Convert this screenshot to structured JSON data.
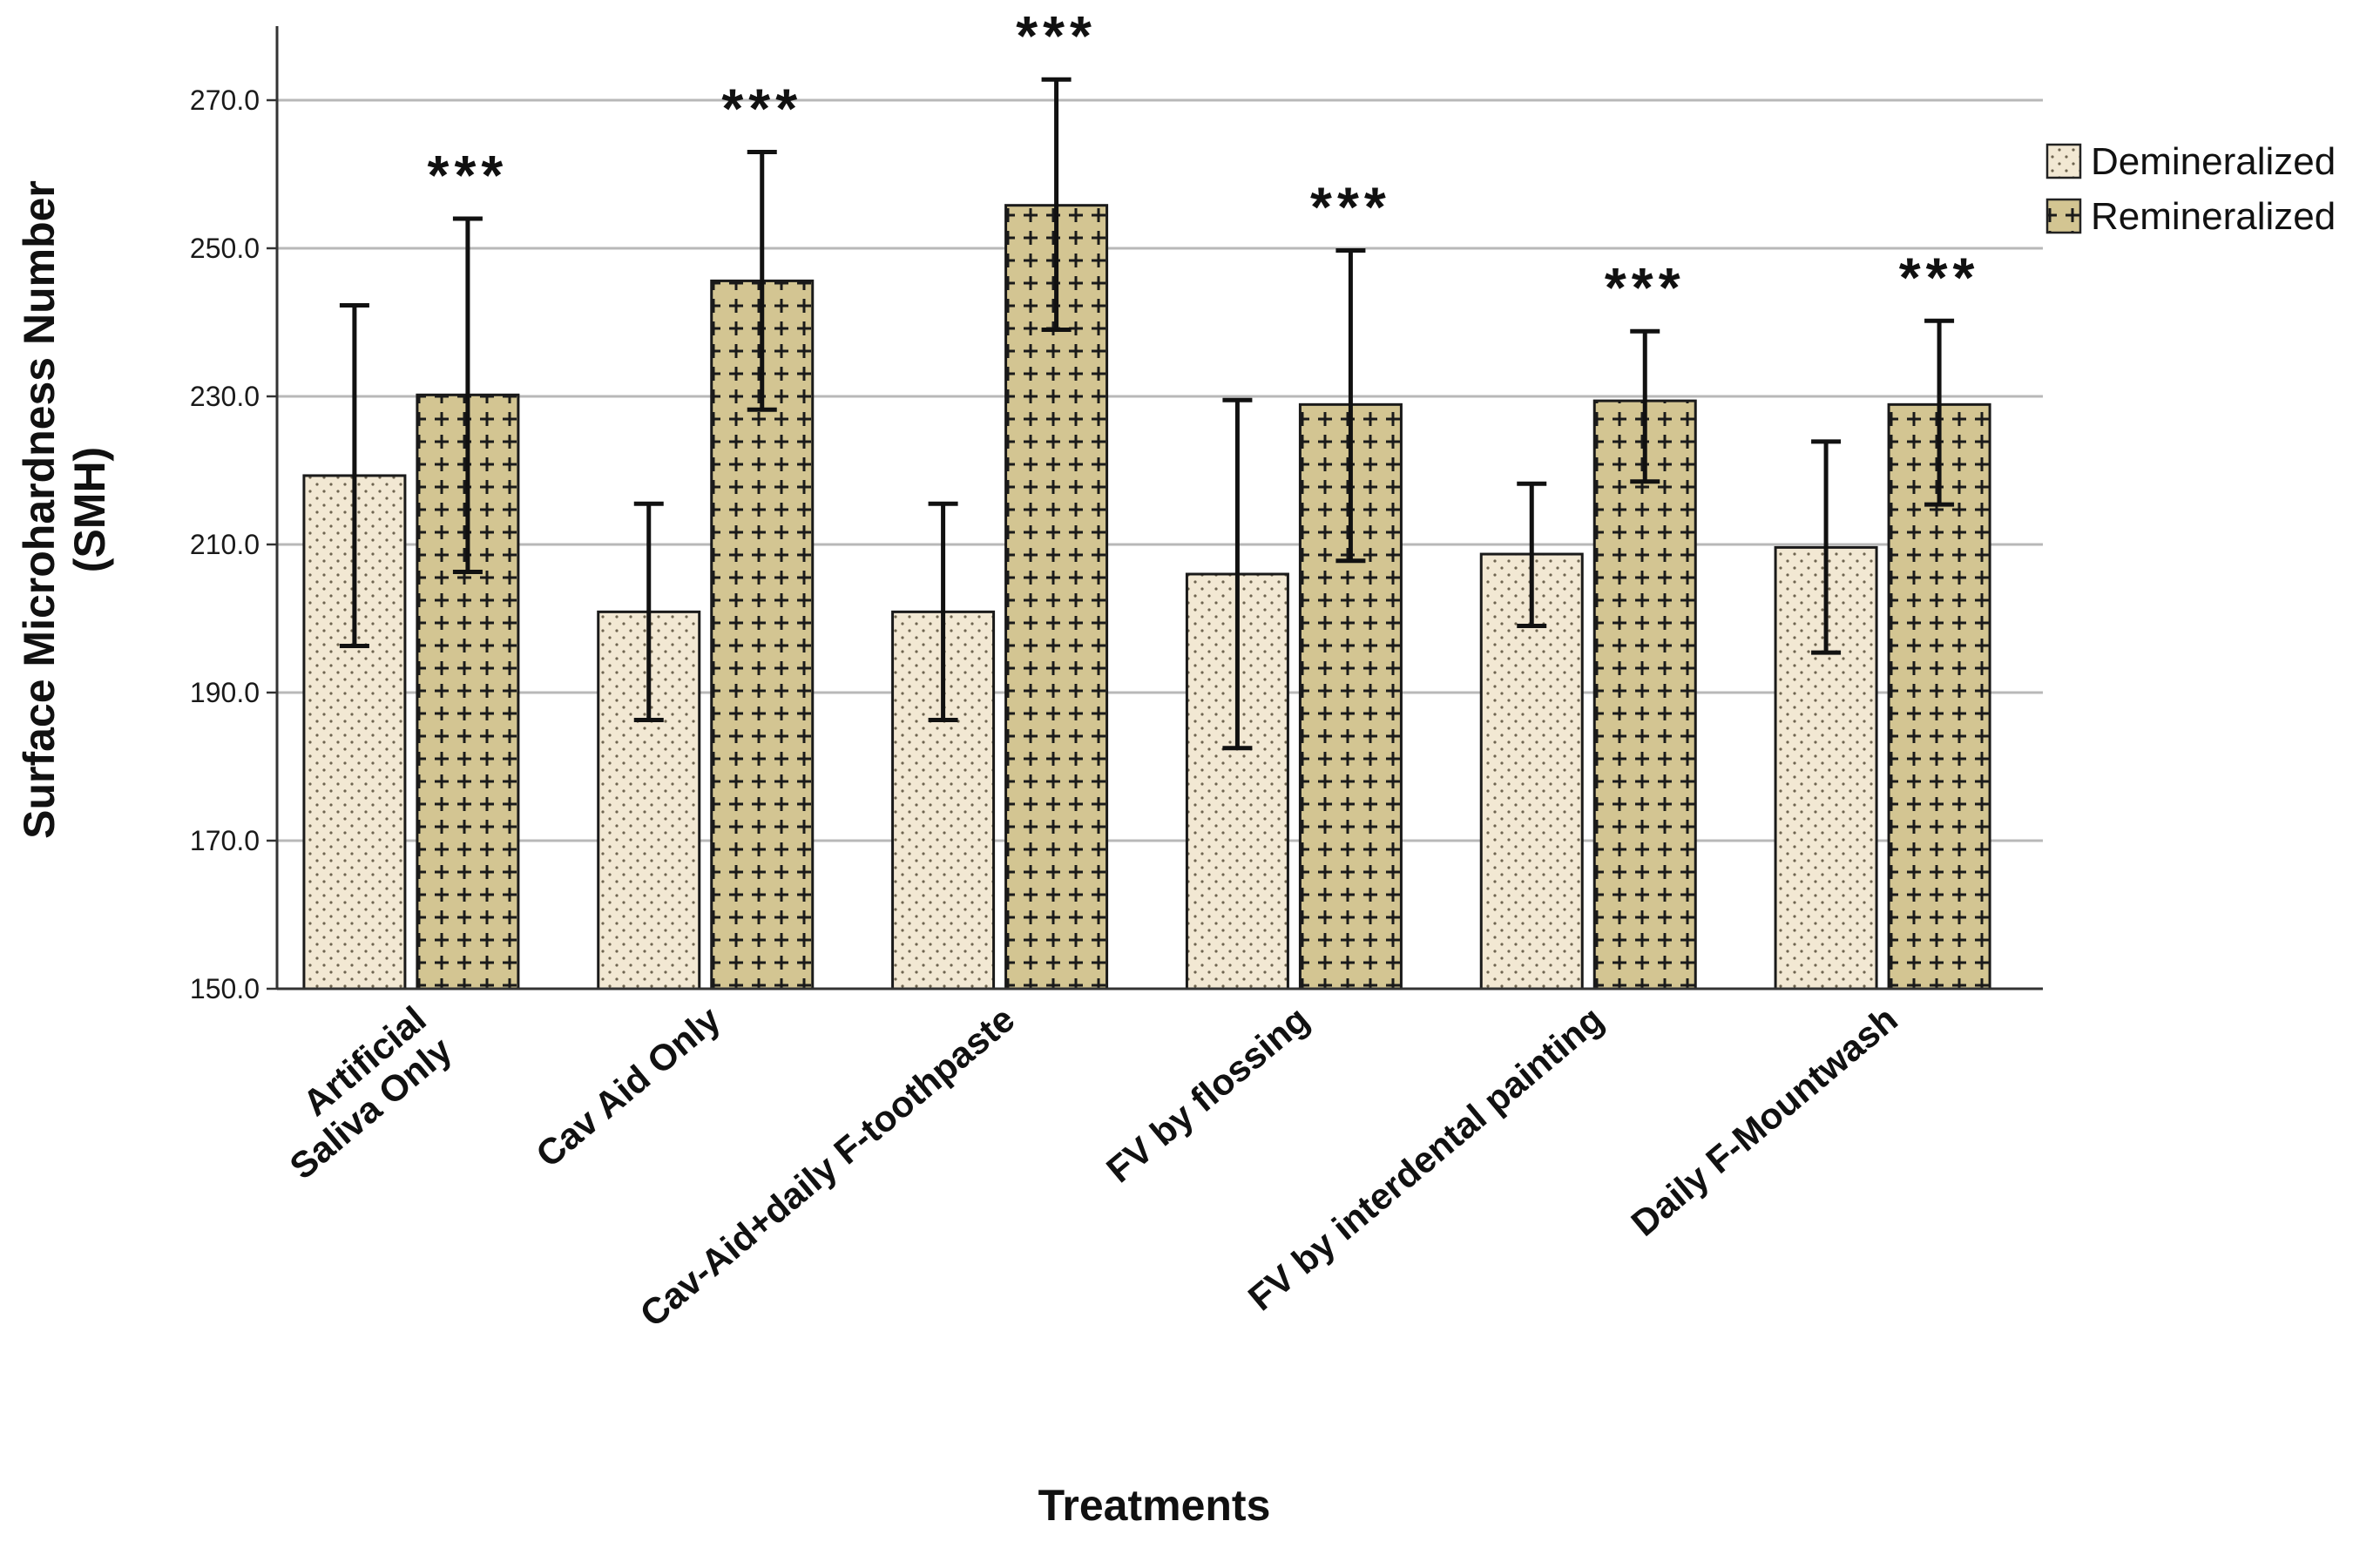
{
  "chart_data": {
    "type": "bar",
    "title": "",
    "xlabel": "Treatments",
    "ylabel": "Surface Microhardness Number",
    "ylabel_sub": "(SMH)",
    "ylim": [
      150,
      280
    ],
    "yticks": [
      150,
      170,
      190,
      210,
      230,
      250,
      270
    ],
    "ytick_labels": [
      "150.0",
      "170.0",
      "190.0",
      "210.0",
      "230.0",
      "250.0",
      "270.0"
    ],
    "grid": true,
    "legend_position": "top-right",
    "categories": [
      [
        "Artificial",
        "Saliva Only"
      ],
      [
        "Cav Aid Only"
      ],
      [
        "Cav-Aid+daily F-toothpaste"
      ],
      [
        "FV by flossing"
      ],
      [
        "FV by interdental painting"
      ],
      [
        "Daily F-Mountwash"
      ]
    ],
    "series": [
      {
        "name": "Demineralized",
        "pattern": "dots",
        "fill": "#f2e8d3",
        "values": [
          219.3,
          200.9,
          200.9,
          206.0,
          208.7,
          209.6
        ],
        "error_low": [
          196.3,
          186.3,
          186.3,
          182.5,
          199.0,
          195.4
        ],
        "error_high": [
          242.3,
          215.5,
          215.5,
          229.5,
          218.2,
          223.9
        ]
      },
      {
        "name": "Remineralized",
        "pattern": "crosses",
        "fill": "#d3c592",
        "values": [
          230.2,
          245.6,
          255.8,
          228.9,
          229.4,
          228.9
        ],
        "error_low": [
          206.3,
          228.2,
          239.0,
          207.8,
          218.5,
          215.4
        ],
        "error_high": [
          254.0,
          263.0,
          272.8,
          249.7,
          238.8,
          240.2
        ]
      }
    ],
    "annotations": [
      "***",
      "***",
      "***",
      "***",
      "***",
      "***"
    ]
  }
}
